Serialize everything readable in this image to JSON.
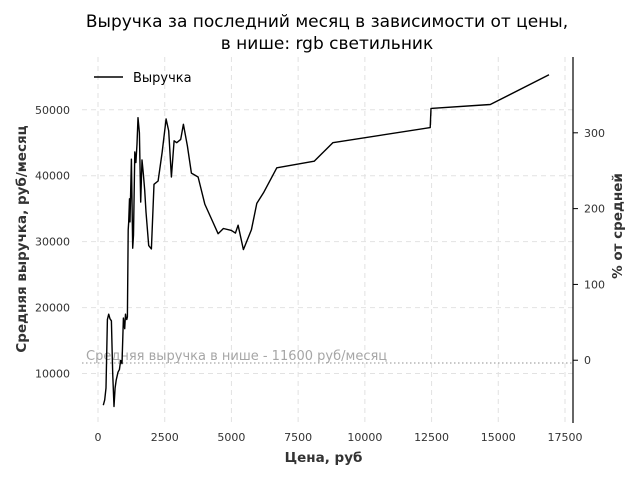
{
  "chart_data": {
    "type": "line",
    "title_line1": "Выручка за последний месяц в зависимости от цены,",
    "title_line2": "в нише: rgb светильник",
    "xlabel": "Цена, руб",
    "ylabel": "Средняя выручка, руб/месяц",
    "y2label": "% от средней",
    "xlim": [
      -600,
      17800
    ],
    "ylim": [
      2500,
      58000
    ],
    "y2lim": [
      -82.8,
      400
    ],
    "x_ticks": [
      0,
      2500,
      5000,
      7500,
      10000,
      12500,
      15000,
      17500
    ],
    "x_tick_labels": [
      "0",
      "2500",
      "5000",
      "7500",
      "10000",
      "12500",
      "15000",
      "17500"
    ],
    "y_ticks": [
      10000,
      20000,
      30000,
      40000,
      50000
    ],
    "y_tick_labels": [
      "10000",
      "20000",
      "30000",
      "40000",
      "50000"
    ],
    "y2_ticks": [
      0,
      100,
      200,
      300
    ],
    "y2_tick_labels": [
      "0",
      "100",
      "200",
      "300"
    ],
    "grid": true,
    "legend": {
      "position": "top-left",
      "entries": [
        "Выручка"
      ]
    },
    "reference_line": {
      "y": 11600,
      "label": "Средняя выручка в нише - 11600 руб/месяц",
      "color": "#a6a6a6"
    },
    "series": [
      {
        "name": "Выручка",
        "color": "#000000",
        "x": [
          200,
          250,
          300,
          350,
          400,
          450,
          500,
          550,
          600,
          640,
          680,
          750,
          800,
          850,
          900,
          950,
          1000,
          1030,
          1050,
          1080,
          1100,
          1130,
          1150,
          1180,
          1200,
          1250,
          1300,
          1330,
          1380,
          1420,
          1460,
          1500,
          1550,
          1600,
          1650,
          1700,
          1750,
          1800,
          1900,
          2000,
          2100,
          2250,
          2400,
          2550,
          2650,
          2750,
          2850,
          2950,
          3100,
          3200,
          3350,
          3500,
          3750,
          4000,
          4300,
          4500,
          4700,
          5000,
          5150,
          5250,
          5450,
          5750,
          5950,
          6200,
          6700,
          8100,
          8800,
          12450,
          12480,
          14700,
          16900
        ],
        "y": [
          5200,
          6000,
          7800,
          18200,
          19000,
          18300,
          18000,
          10000,
          5000,
          7800,
          9000,
          10200,
          10600,
          12000,
          11500,
          18400,
          16800,
          19000,
          18400,
          18200,
          18600,
          31800,
          33000,
          36500,
          33000,
          42500,
          29000,
          31000,
          43600,
          42000,
          44800,
          48800,
          46500,
          36000,
          42400,
          40200,
          37800,
          34500,
          29400,
          28900,
          38700,
          39200,
          43500,
          48600,
          46800,
          39800,
          45300,
          45000,
          45500,
          47800,
          44500,
          40400,
          39800,
          35700,
          33000,
          31200,
          32000,
          31700,
          31300,
          32500,
          28800,
          31800,
          35800,
          37400,
          41200,
          42200,
          45000,
          47300,
          50200,
          50800,
          55300
        ]
      }
    ]
  }
}
